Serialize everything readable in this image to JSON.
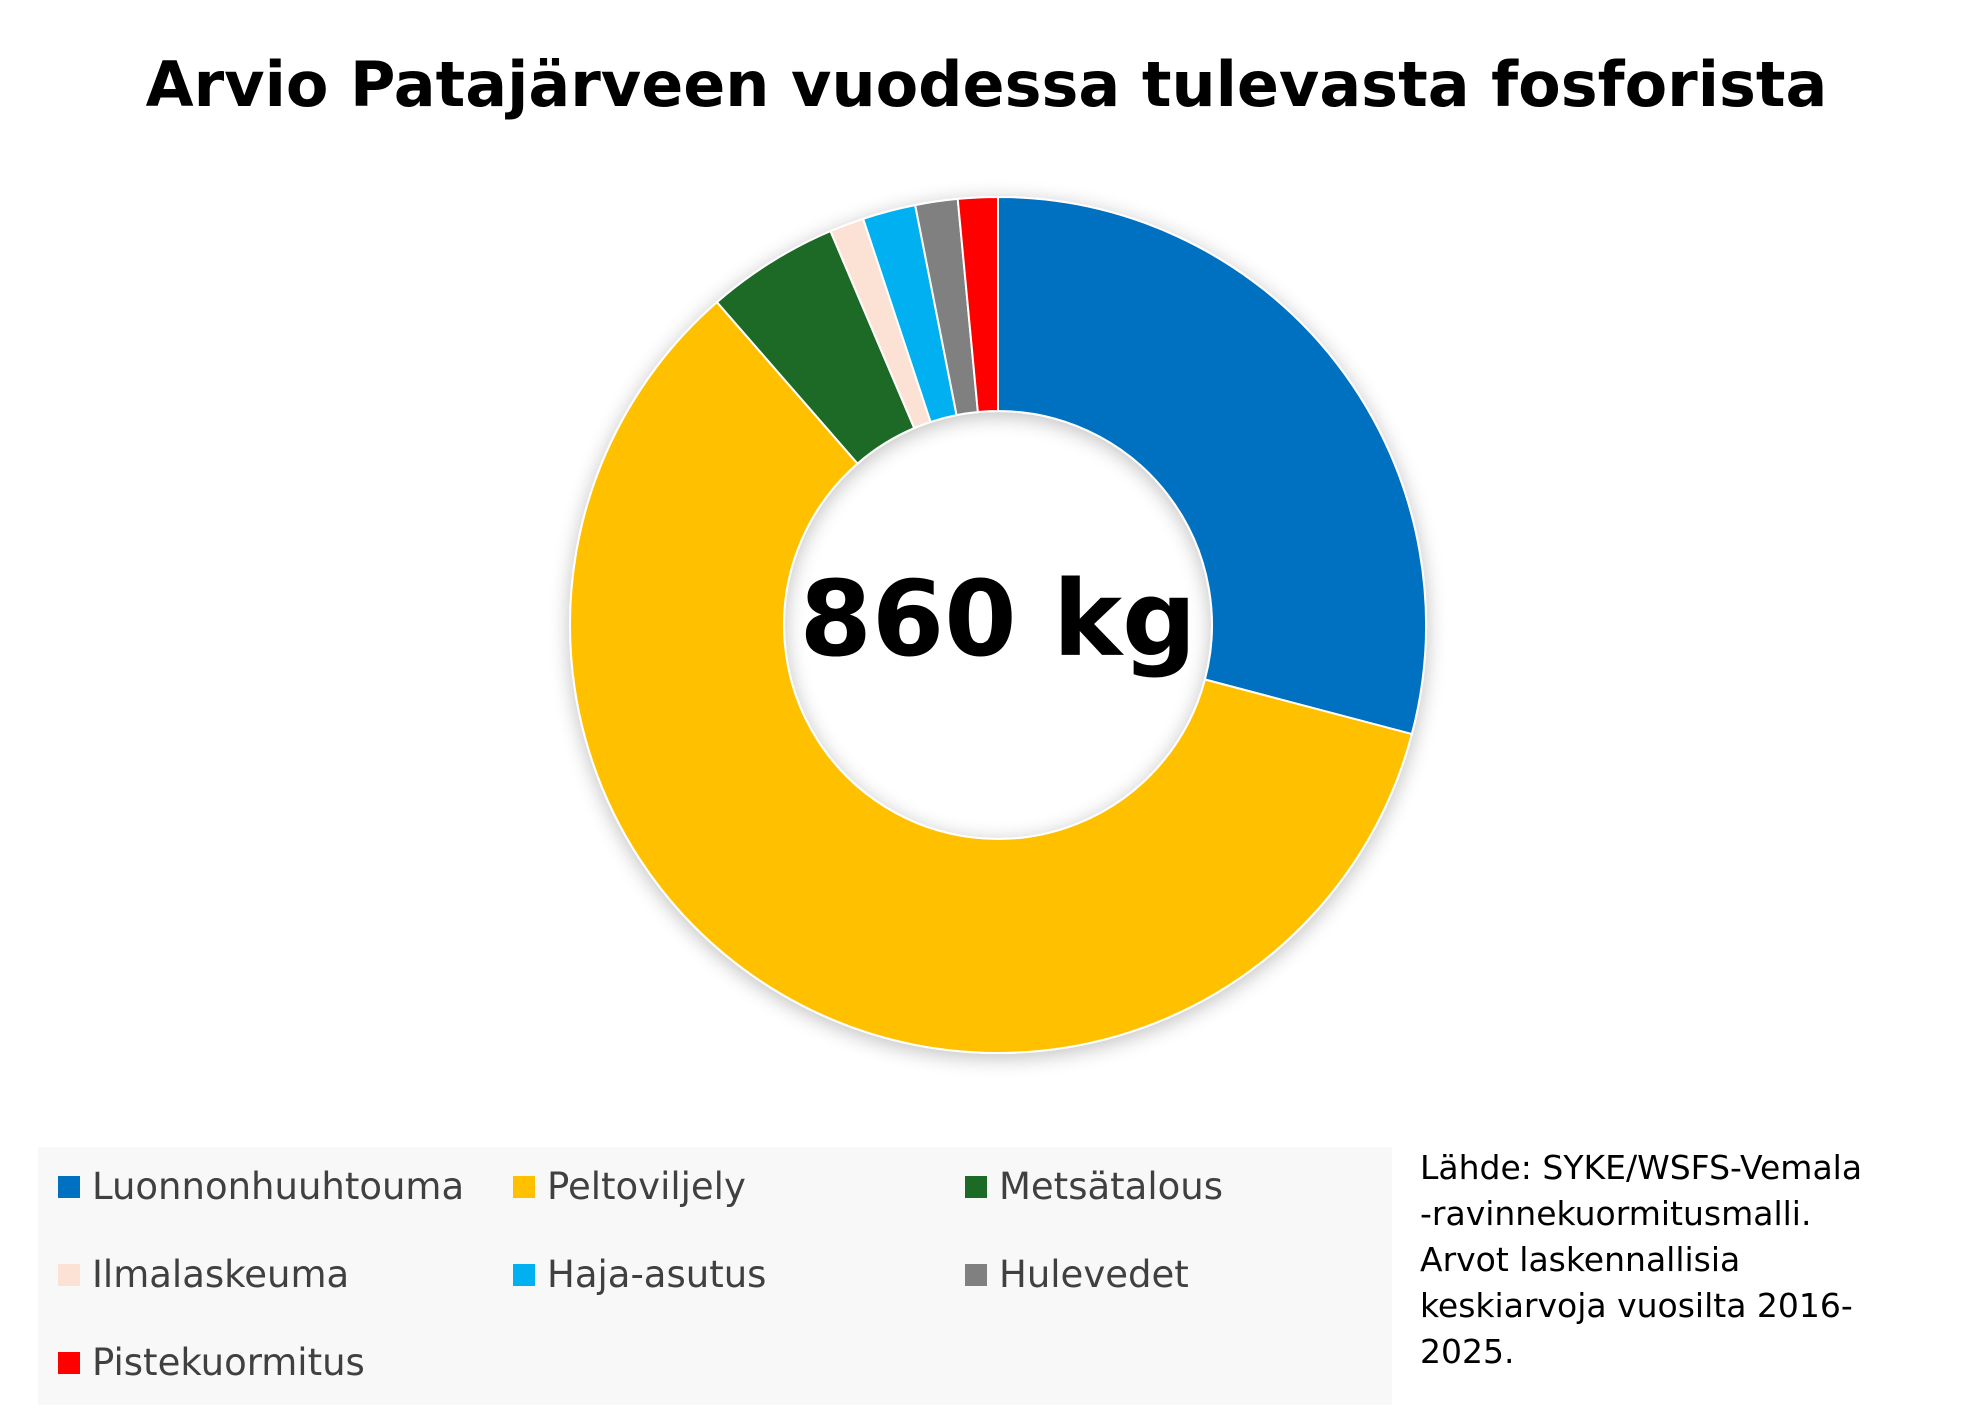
{
  "chart_data": {
    "type": "pie",
    "variant": "donut",
    "title": "Arvio Patajärveen vuodessa tulevasta fosforista",
    "center_label": "860 kg",
    "unit": "%",
    "categories": [
      "Luonnonhuuhtouma",
      "Peltoviljely",
      "Metsätalous",
      "Ilmalaskeuma",
      "Haja-asutus",
      "Hulevedet",
      "Pistekuormitus"
    ],
    "values": [
      29.1,
      59.5,
      5.0,
      1.3,
      2.0,
      1.6,
      1.5
    ],
    "colors": [
      "#0070c0",
      "#ffc000",
      "#1b6b27",
      "#fbe2d5",
      "#00b0f0",
      "#808080",
      "#ff0000"
    ],
    "legend_position": "bottom",
    "source_lines": [
      "Lähde: SYKE/WSFS-Vemala",
      "-ravinnekuormitusmalli.",
      "Arvot laskennallisia",
      "keskiarvoja vuosilta 2016-",
      "2025."
    ]
  }
}
